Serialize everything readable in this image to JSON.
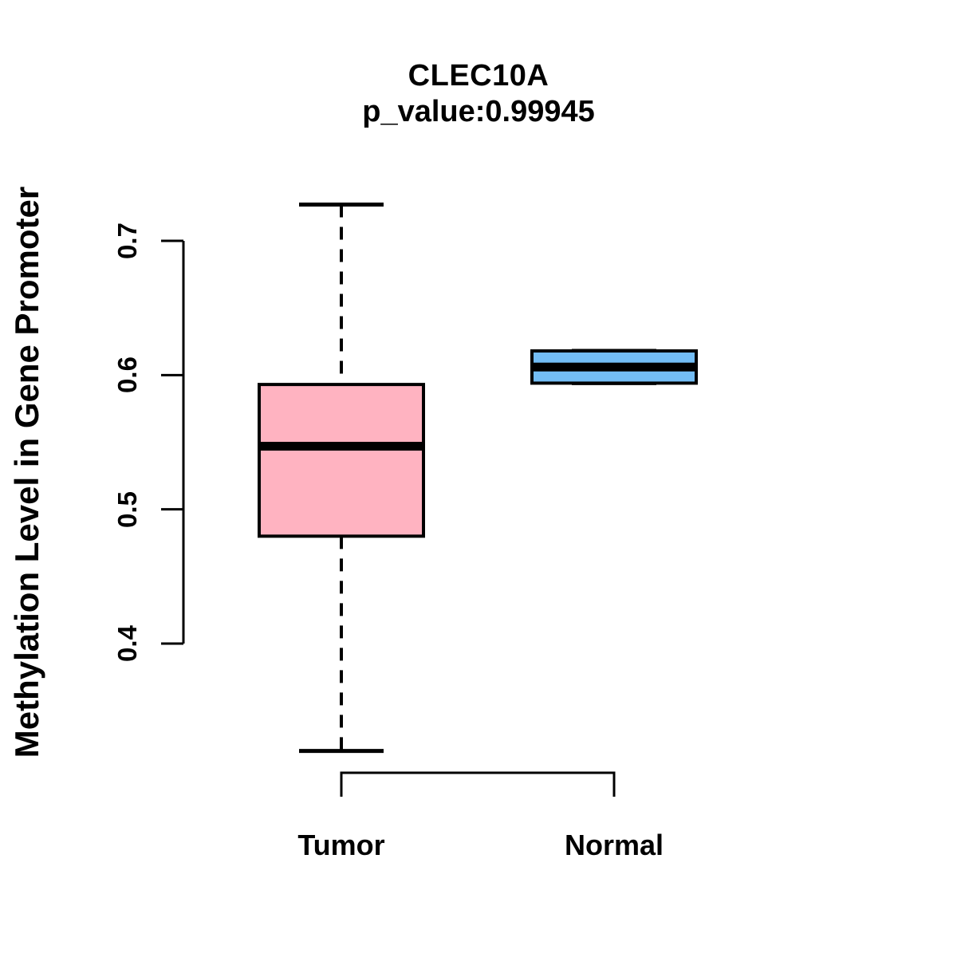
{
  "chart_data": {
    "type": "boxplot",
    "title": "CLEC10A",
    "subtitle": "p_value:0.99945",
    "ylabel": "Methylation Level in Gene Promoter",
    "xlabel": "",
    "categories": [
      "Tumor",
      "Normal"
    ],
    "y_ticks": [
      0.4,
      0.5,
      0.6,
      0.7
    ],
    "y_tick_labels": [
      "0.4",
      "0.5",
      "0.6",
      "0.7"
    ],
    "ylim": [
      0.3,
      0.76
    ],
    "grid": "off",
    "legend": "none",
    "series": [
      {
        "name": "Tumor",
        "whisker_low": 0.32,
        "q1": 0.48,
        "median": 0.547,
        "q3": 0.593,
        "whisker_high": 0.727,
        "fill_color": "#FFB3C1"
      },
      {
        "name": "Normal",
        "whisker_low": 0.594,
        "q1": 0.594,
        "median": 0.606,
        "q3": 0.618,
        "whisker_high": 0.618,
        "fill_color": "#73BDF5"
      }
    ],
    "axis_color": "#000000",
    "median_color": "#000000",
    "background_color": "#FFFFFF"
  }
}
